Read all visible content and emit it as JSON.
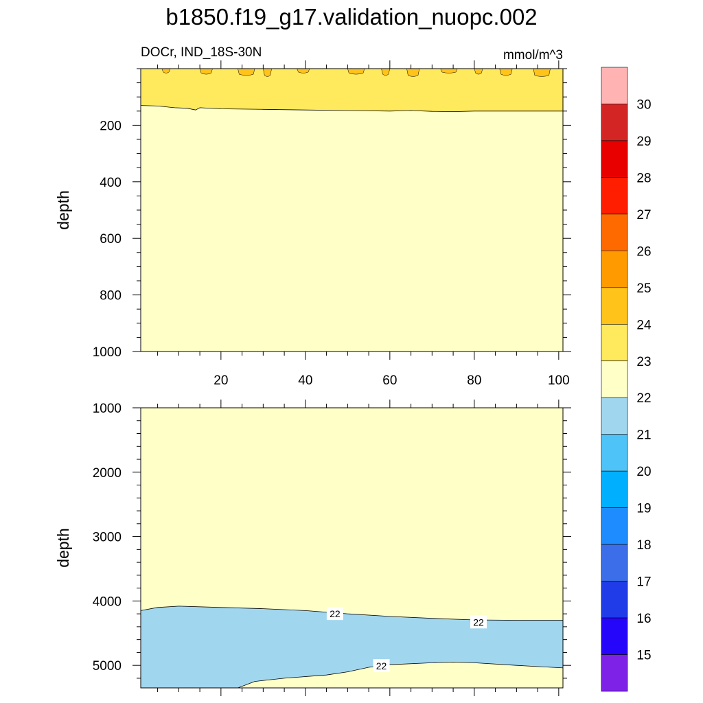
{
  "title": "b1850.f19_g17.validation_nuopc.002",
  "left_string": "DOCr, IND_18S-30N",
  "right_string": "mmol/m^3",
  "colors": {
    "bin_14_15": "#7e22e8",
    "bin_15_16": "#2606fa",
    "bin_16_17": "#1f3ce8",
    "bin_17_18": "#3b6ee8",
    "bin_18_19": "#1e8cff",
    "bin_19_20": "#00b0ff",
    "bin_20_21": "#4ec3f7",
    "bin_21_22": "#a1d6ef",
    "bin_22_23": "#ffffc8",
    "bin_23_24": "#ffe95c",
    "bin_24_25": "#ffc31a",
    "bin_25_26": "#ff9a00",
    "bin_26_27": "#ff6a00",
    "bin_27_28": "#ff1e00",
    "bin_28_29": "#e80000",
    "bin_29_30": "#d42525",
    "bin_30_up": "#ffb3b3"
  },
  "chart_data": [
    {
      "type": "heatmap",
      "panel": "upper",
      "xlabel": "",
      "ylabel": "depth",
      "xlim": [
        1,
        101
      ],
      "ylim": [
        1000,
        0
      ],
      "xticks": [
        20,
        40,
        60,
        80,
        100
      ],
      "yticks": [
        200,
        400,
        600,
        800,
        1000
      ],
      "grid": false,
      "regions": [
        {
          "range": "22-23",
          "depth_from": 150,
          "depth_to": 1000
        },
        {
          "range": "23-24",
          "depth_from": 0,
          "depth_to": 150
        },
        {
          "range": "24-25",
          "note": "patches",
          "depth_from": 0,
          "depth_to": 20
        }
      ],
      "contour_23_depth": [
        [
          1,
          130
        ],
        [
          5,
          132
        ],
        [
          9,
          138
        ],
        [
          12,
          140
        ],
        [
          14,
          146
        ],
        [
          15,
          138
        ],
        [
          20,
          142
        ],
        [
          30,
          144
        ],
        [
          40,
          146
        ],
        [
          50,
          148
        ],
        [
          60,
          150
        ],
        [
          65,
          148
        ],
        [
          70,
          151
        ],
        [
          75,
          152
        ],
        [
          80,
          150
        ],
        [
          90,
          150
        ],
        [
          101,
          150
        ]
      ]
    },
    {
      "type": "heatmap",
      "panel": "lower",
      "xlabel": "",
      "ylabel": "depth",
      "xlim": [
        1,
        101
      ],
      "ylim": [
        5350,
        1000
      ],
      "yticks": [
        1000,
        2000,
        3000,
        4000,
        5000
      ],
      "grid": false,
      "regions": [
        {
          "range": "22-23",
          "location": "above ~4100 m and lower right"
        },
        {
          "range": "21-22",
          "location": "band ~4100-5300 m"
        }
      ],
      "contour_22_upper_depth": [
        [
          1,
          4150
        ],
        [
          5,
          4100
        ],
        [
          10,
          4080
        ],
        [
          20,
          4100
        ],
        [
          30,
          4120
        ],
        [
          40,
          4150
        ],
        [
          50,
          4200
        ],
        [
          60,
          4240
        ],
        [
          70,
          4270
        ],
        [
          80,
          4295
        ],
        [
          90,
          4300
        ],
        [
          101,
          4300
        ]
      ],
      "contour_22_lower_depth": [
        [
          24,
          5350
        ],
        [
          28,
          5250
        ],
        [
          35,
          5200
        ],
        [
          45,
          5150
        ],
        [
          50,
          5100
        ],
        [
          55,
          5030
        ],
        [
          60,
          4990
        ],
        [
          70,
          4960
        ],
        [
          75,
          4950
        ],
        [
          80,
          4960
        ],
        [
          90,
          5000
        ],
        [
          101,
          5040
        ]
      ],
      "contour_labels": [
        {
          "text": "22",
          "x": 47,
          "depth": 4200
        },
        {
          "text": "22",
          "x": 81,
          "depth": 4330
        },
        {
          "text": "22",
          "x": 58,
          "depth": 5010
        }
      ]
    }
  ],
  "colorbar": {
    "labels": [
      "15",
      "16",
      "17",
      "18",
      "19",
      "20",
      "21",
      "22",
      "23",
      "24",
      "25",
      "26",
      "27",
      "28",
      "29",
      "30"
    ]
  }
}
